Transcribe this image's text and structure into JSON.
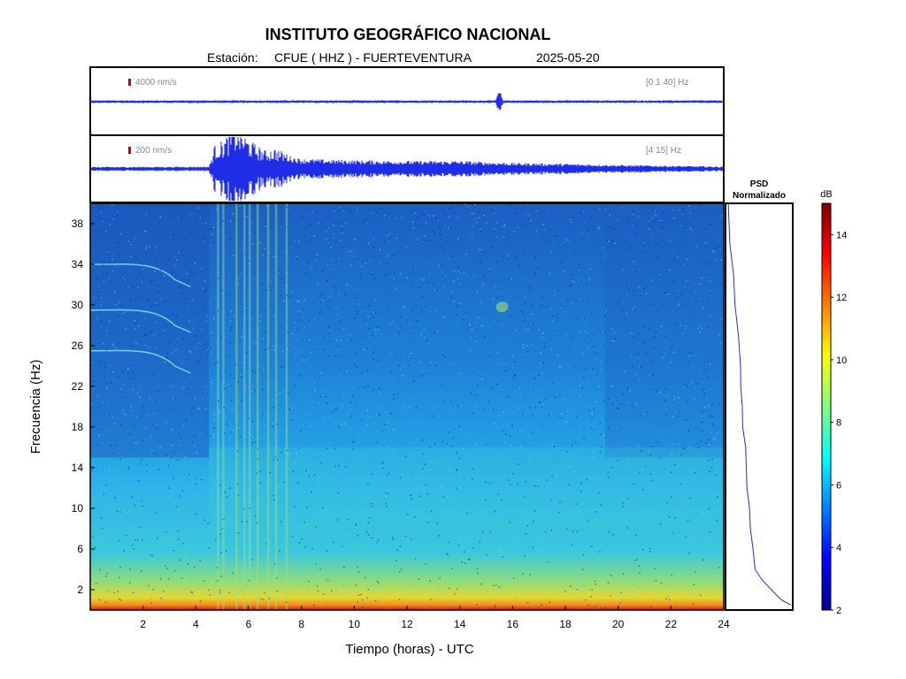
{
  "header": {
    "title": "INSTITUTO GEOGRÁFICO NACIONAL",
    "station_label": "Estación:",
    "station": "CFUE ( HHZ ) - FUERTEVENTURA",
    "date": "2025-05-20"
  },
  "colors": {
    "trace": "#1f2de6",
    "scale_marker": "#d40000",
    "frame": "#000000"
  },
  "chart_data": [
    {
      "type": "line",
      "name": "waveform-broadband",
      "scale_label": "4000 nm/s",
      "band_label": "[0.1 40]  Hz",
      "x_range": [
        0,
        24
      ],
      "events": [
        {
          "x": 15.5,
          "amplitude": 0.6
        }
      ]
    },
    {
      "type": "line",
      "name": "waveform-filtered",
      "scale_label": "200 nm/s",
      "band_label": "[4 15]  Hz",
      "x_range": [
        0,
        24
      ],
      "envelope": [
        [
          0,
          0.05
        ],
        [
          4.5,
          0.06
        ],
        [
          4.7,
          0.5
        ],
        [
          5.0,
          0.6
        ],
        [
          5.3,
          0.8
        ],
        [
          5.6,
          0.95
        ],
        [
          5.9,
          0.7
        ],
        [
          6.2,
          0.55
        ],
        [
          6.6,
          0.4
        ],
        [
          7.0,
          0.45
        ],
        [
          7.4,
          0.35
        ],
        [
          8,
          0.25
        ],
        [
          10,
          0.22
        ],
        [
          12,
          0.2
        ],
        [
          14,
          0.2
        ],
        [
          16,
          0.15
        ],
        [
          18,
          0.13
        ],
        [
          20,
          0.1
        ],
        [
          22,
          0.08
        ],
        [
          24,
          0.06
        ]
      ]
    },
    {
      "type": "heatmap",
      "name": "spectrogram",
      "xlabel": "Tiempo (horas) - UTC",
      "ylabel": "Frecuencia  (Hz)",
      "xlim": [
        0,
        24
      ],
      "ylim": [
        0,
        40
      ],
      "x_ticks": [
        "2",
        "4",
        "6",
        "8",
        "10",
        "12",
        "14",
        "16",
        "18",
        "20",
        "22",
        "24"
      ],
      "y_ticks": [
        "2",
        "6",
        "10",
        "14",
        "18",
        "22",
        "26",
        "30",
        "34",
        "38"
      ]
    },
    {
      "type": "line",
      "name": "psd-normalized",
      "title": "PSD Normalizado",
      "x": [
        0.0,
        0.05,
        0.1,
        0.12,
        0.15,
        0.18,
        0.2,
        0.22,
        0.25,
        0.28,
        0.3,
        0.32,
        0.35,
        0.38,
        0.4,
        0.45,
        0.55,
        0.7,
        0.85,
        1.0
      ],
      "y": [
        40,
        36,
        33,
        30,
        27,
        24,
        22,
        20,
        18,
        16,
        14,
        12,
        10,
        8,
        6,
        4,
        3,
        2,
        1,
        0.5
      ]
    },
    {
      "type": "colorbar",
      "name": "colorbar-db",
      "unit": "dB",
      "range": [
        2,
        15
      ],
      "ticks": [
        "2",
        "4",
        "6",
        "8",
        "10",
        "12",
        "14"
      ]
    }
  ]
}
